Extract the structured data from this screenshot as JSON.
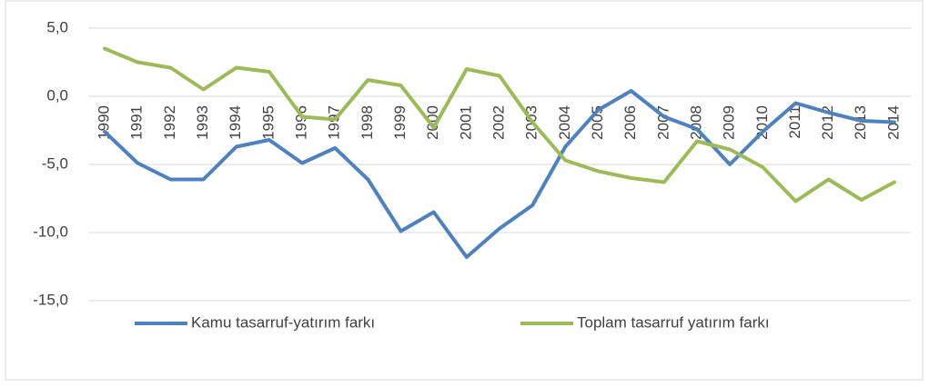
{
  "chart_data": {
    "type": "line",
    "categories": [
      "1990",
      "1991",
      "1992",
      "1993",
      "1994",
      "1995",
      "1996",
      "1997",
      "1998",
      "1999",
      "2000",
      "2001",
      "2002",
      "2003",
      "2004",
      "2005",
      "2006",
      "2007",
      "2008",
      "2009",
      "2010",
      "2011",
      "2012",
      "2013",
      "2014"
    ],
    "series": [
      {
        "name": "Kamu tasarruf-yatırım farkı",
        "color": "#4f81bd",
        "values": [
          -2.6,
          -4.9,
          -6.1,
          -6.1,
          -3.7,
          -3.2,
          -4.9,
          -3.8,
          -6.1,
          -9.9,
          -8.5,
          -11.8,
          -9.7,
          -8.0,
          -3.7,
          -1.0,
          0.4,
          -1.5,
          -2.4,
          -5.0,
          -2.6,
          -0.5,
          -1.2,
          -1.8,
          -1.9
        ]
      },
      {
        "name": "Toplam tasarruf yatırım farkı",
        "color": "#9bbb59",
        "values": [
          3.5,
          2.5,
          2.1,
          0.5,
          2.1,
          1.8,
          -1.5,
          -1.7,
          1.2,
          0.8,
          -2.3,
          2.0,
          1.5,
          -1.9,
          -4.7,
          -5.5,
          -6.0,
          -6.3,
          -3.3,
          -3.9,
          -5.2,
          -7.7,
          -6.1,
          -7.6,
          -6.3
        ]
      }
    ],
    "ylim": [
      -15,
      5
    ],
    "yticks": [
      {
        "value": 5,
        "label": "5,0"
      },
      {
        "value": 0,
        "label": "0,0"
      },
      {
        "value": -5,
        "label": "-5,0"
      },
      {
        "value": -10,
        "label": "-10,0"
      },
      {
        "value": -15,
        "label": "-15,0"
      }
    ],
    "grid": true,
    "legend": "bottom"
  }
}
